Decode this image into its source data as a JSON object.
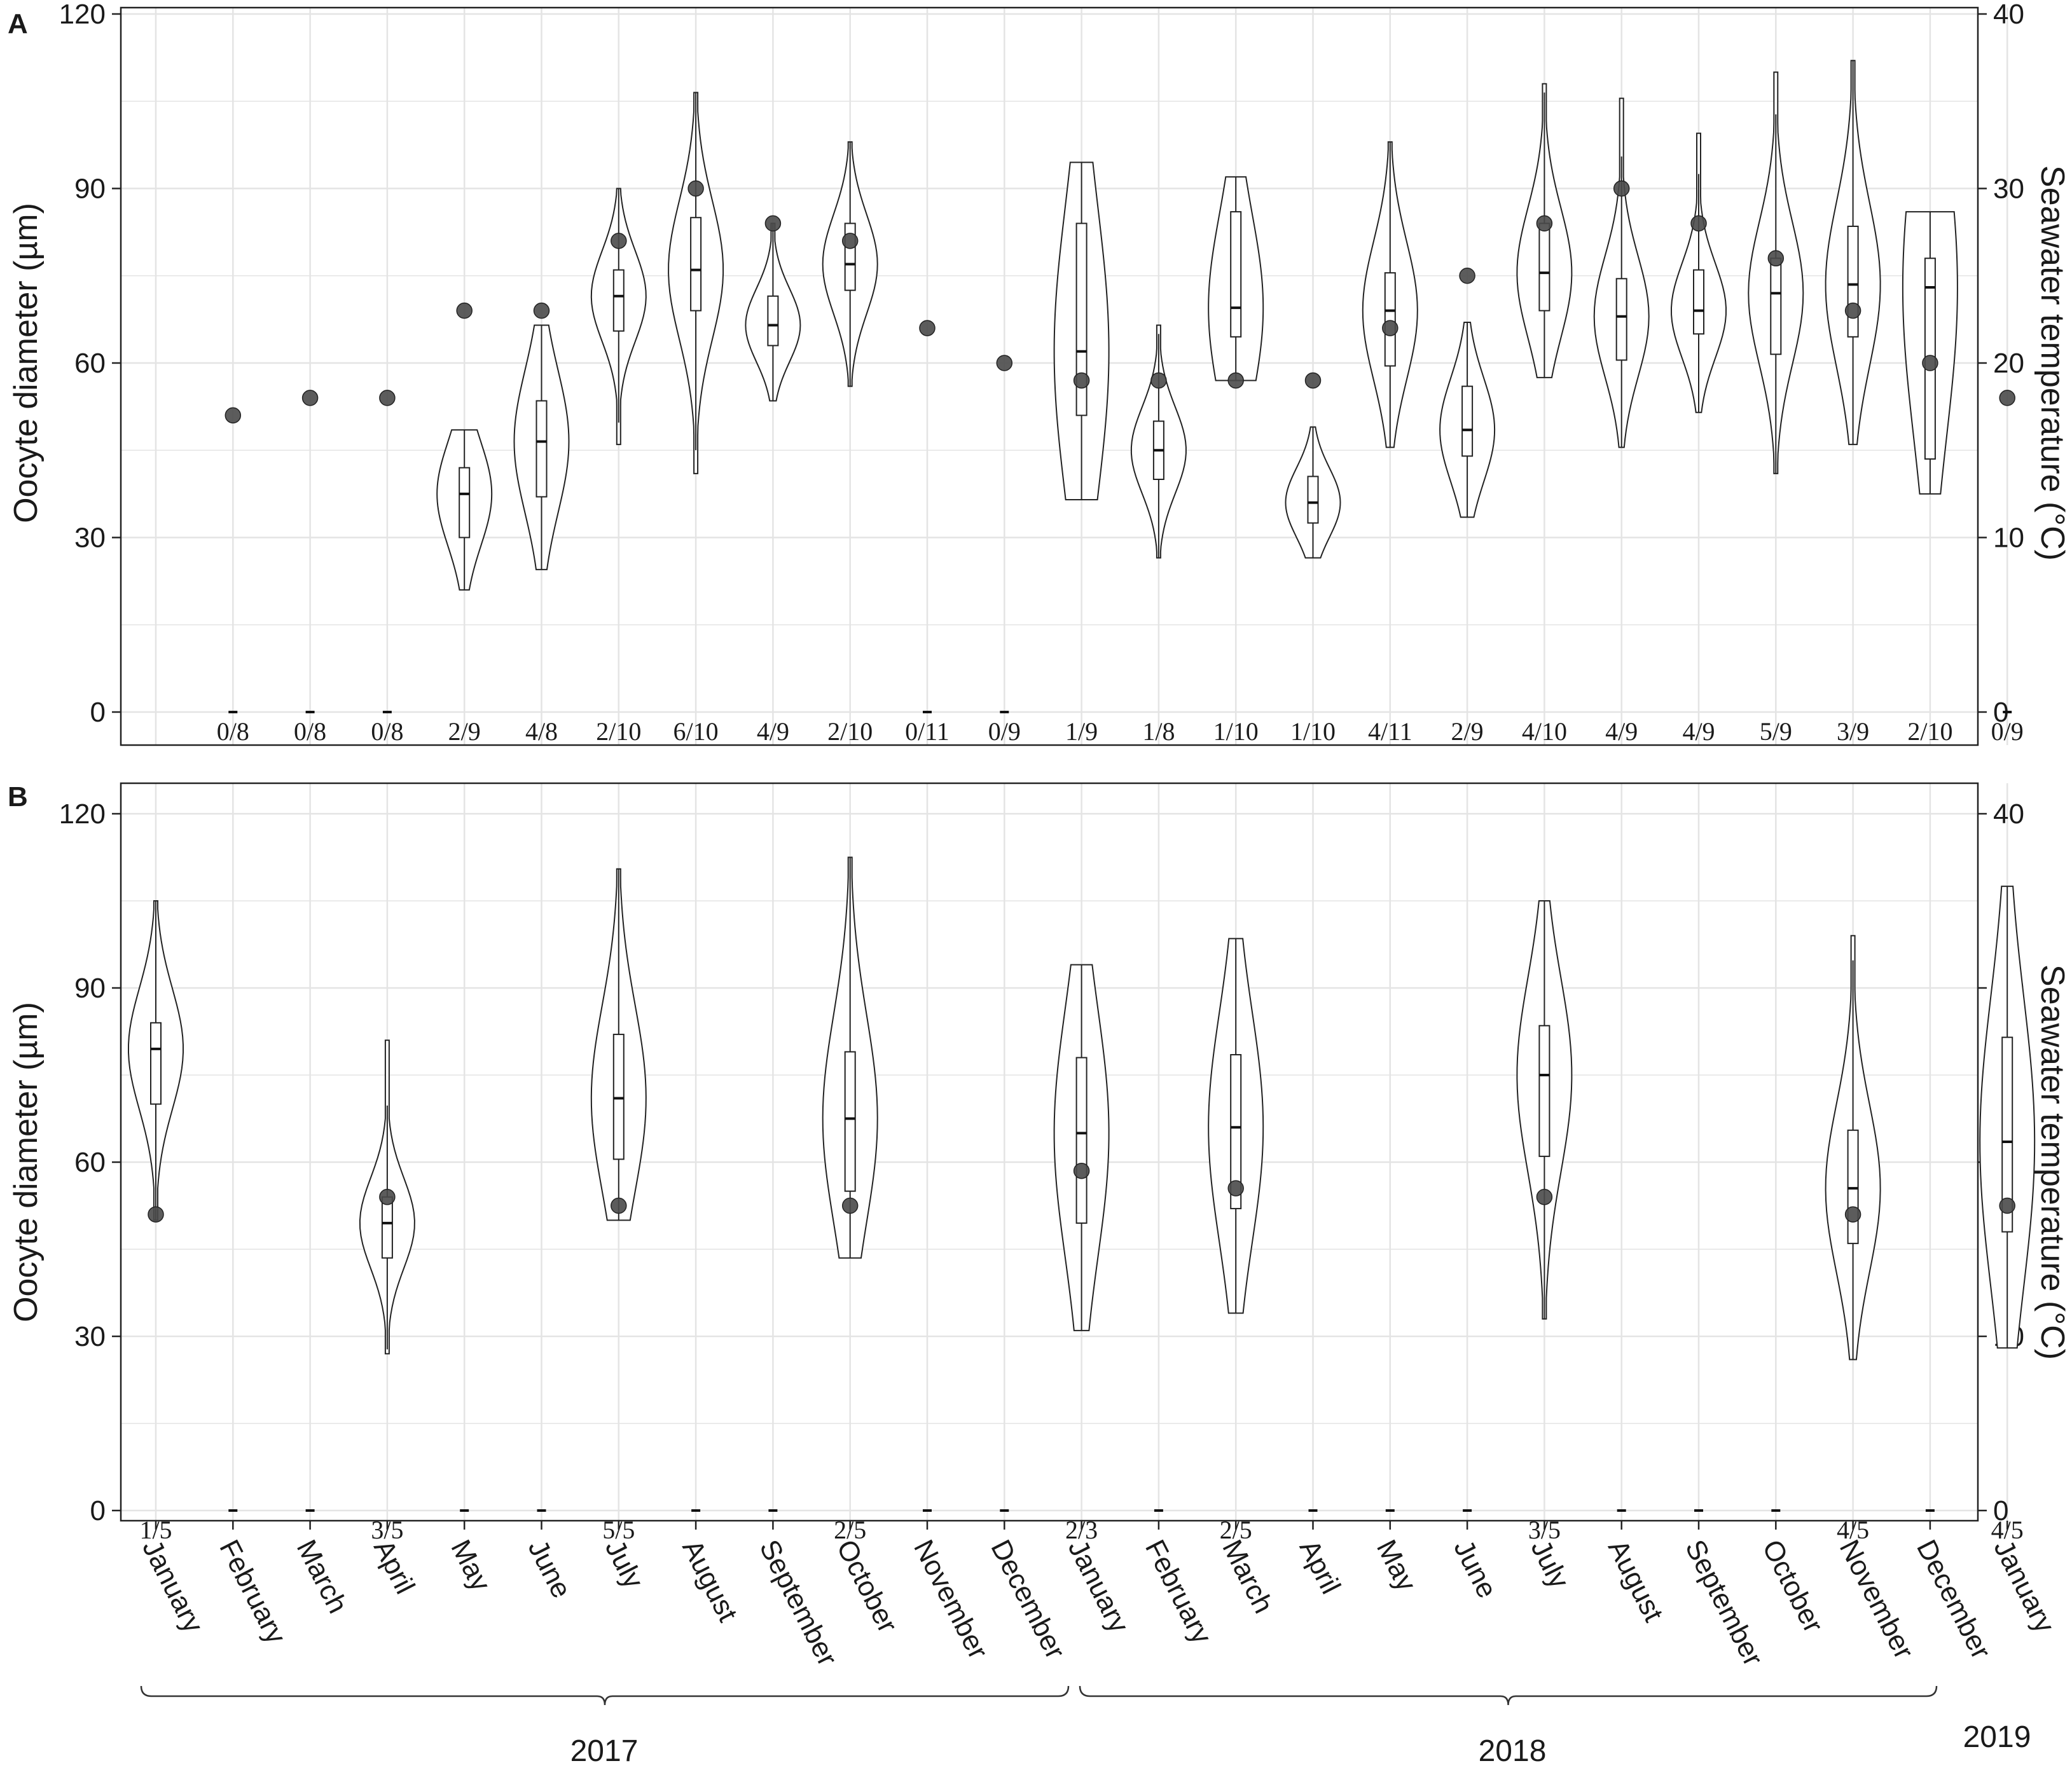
{
  "chart_data": [
    {
      "type": "violin",
      "panel_label": "A",
      "ylabel": "Oocyte diameter (µm)",
      "y2label": "Seawater temperature (°C)",
      "ylim": [
        0,
        120
      ],
      "y2lim": [
        0,
        40
      ],
      "yticks": [
        0,
        30,
        60,
        90,
        120
      ],
      "y2ticks": [
        0,
        10,
        20,
        30,
        40
      ],
      "grid": true,
      "categories": [
        "2017-01",
        "2017-02",
        "2017-03",
        "2017-04",
        "2017-05",
        "2017-06",
        "2017-07",
        "2017-08",
        "2017-09",
        "2017-10",
        "2017-11",
        "2017-12",
        "2018-01",
        "2018-02",
        "2018-03",
        "2018-04",
        "2018-05",
        "2018-06",
        "2018-07",
        "2018-08",
        "2018-09",
        "2018-10",
        "2018-11",
        "2018-12",
        "2019-01"
      ],
      "counts": [
        "",
        "0/8",
        "0/8",
        "0/8",
        "2/9",
        "4/8",
        "2/10",
        "6/10",
        "4/9",
        "2/10",
        "0/11",
        "0/9",
        "1/9",
        "1/8",
        "1/10",
        "1/10",
        "4/11",
        "2/9",
        "4/10",
        "4/9",
        "4/9",
        "5/9",
        "3/9",
        "2/10",
        "0/9"
      ],
      "temperature": [
        null,
        17,
        18,
        18,
        23,
        23,
        27,
        30,
        28,
        27,
        22,
        20,
        19,
        19,
        19,
        19,
        22,
        25,
        28,
        30,
        28,
        26,
        23,
        20,
        18
      ],
      "violins": [
        null,
        null,
        null,
        null,
        {
          "min": 21,
          "q1": 30,
          "median": 37.5,
          "q3": 42,
          "max": 48.5
        },
        {
          "min": 24.5,
          "q1": 37,
          "median": 46.5,
          "q3": 53.5,
          "max": 66.5
        },
        {
          "min": 46,
          "q1": 65.5,
          "median": 71.5,
          "q3": 76,
          "max": 90
        },
        {
          "min": 41,
          "q1": 69,
          "median": 76,
          "q3": 85,
          "max": 106.5
        },
        {
          "min": 53.5,
          "q1": 63,
          "median": 66.5,
          "q3": 71.5,
          "max": 84
        },
        {
          "min": 56,
          "q1": 72.5,
          "median": 77,
          "q3": 84,
          "max": 98
        },
        null,
        null,
        {
          "min": 36.5,
          "q1": 51,
          "median": 62,
          "q3": 84,
          "max": 94.5
        },
        {
          "min": 26.5,
          "q1": 40,
          "median": 45,
          "q3": 50,
          "max": 66.5
        },
        {
          "min": 57,
          "q1": 64.5,
          "median": 69.5,
          "q3": 86,
          "max": 92
        },
        {
          "min": 26.5,
          "q1": 32.5,
          "median": 36,
          "q3": 40.5,
          "max": 49
        },
        {
          "min": 45.5,
          "q1": 59.5,
          "median": 69,
          "q3": 75.5,
          "max": 98
        },
        {
          "min": 33.5,
          "q1": 44,
          "median": 48.5,
          "q3": 56,
          "max": 67
        },
        {
          "min": 57.5,
          "q1": 69,
          "median": 75.5,
          "q3": 84,
          "max": 108
        },
        {
          "min": 45.5,
          "q1": 60.5,
          "median": 68,
          "q3": 74.5,
          "max": 105.5
        },
        {
          "min": 51.5,
          "q1": 65,
          "median": 69,
          "q3": 76,
          "max": 99.5
        },
        {
          "min": 41,
          "q1": 61.5,
          "median": 72,
          "q3": 78,
          "max": 110
        },
        {
          "min": 46,
          "q1": 64.5,
          "median": 73.5,
          "q3": 83.5,
          "max": 112
        },
        {
          "min": 37.5,
          "q1": 43.5,
          "median": 73,
          "q3": 78,
          "max": 86
        },
        null
      ]
    },
    {
      "type": "violin",
      "panel_label": "B",
      "ylabel": "Oocyte diameter (µm)",
      "y2label": "Seawater temperature (°C)",
      "ylim": [
        0,
        120
      ],
      "y2lim": [
        0,
        40
      ],
      "yticks": [
        0,
        30,
        60,
        90,
        120
      ],
      "y2ticks": [
        0,
        10,
        20,
        30,
        40
      ],
      "grid": true,
      "categories": [
        "2017-01",
        "2017-02",
        "2017-03",
        "2017-04",
        "2017-05",
        "2017-06",
        "2017-07",
        "2017-08",
        "2017-09",
        "2017-10",
        "2017-11",
        "2017-12",
        "2018-01",
        "2018-02",
        "2018-03",
        "2018-04",
        "2018-05",
        "2018-06",
        "2018-07",
        "2018-08",
        "2018-09",
        "2018-10",
        "2018-11",
        "2018-12",
        "2019-01"
      ],
      "counts": [
        "1/5",
        "",
        "",
        "3/5",
        "",
        "",
        "5/5",
        "",
        "",
        "2/5",
        "",
        "",
        "2/3",
        "",
        "2/5",
        "",
        "",
        "",
        "3/5",
        "",
        "",
        "",
        "4/5",
        "",
        "4/5"
      ],
      "temperature": [
        17,
        null,
        null,
        18,
        null,
        null,
        17.5,
        null,
        null,
        17.5,
        null,
        null,
        19.5,
        null,
        18.5,
        null,
        null,
        null,
        18,
        null,
        null,
        null,
        17,
        null,
        17.5
      ],
      "violins": [
        {
          "min": 50,
          "q1": 70,
          "median": 79.5,
          "q3": 84,
          "max": 105
        },
        null,
        null,
        {
          "min": 27,
          "q1": 43.5,
          "median": 49.5,
          "q3": 54,
          "max": 81
        },
        null,
        null,
        {
          "min": 50,
          "q1": 60.5,
          "median": 71,
          "q3": 82,
          "max": 110.5
        },
        null,
        null,
        {
          "min": 43.5,
          "q1": 55,
          "median": 67.5,
          "q3": 79,
          "max": 112.5
        },
        null,
        null,
        {
          "min": 31,
          "q1": 49.5,
          "median": 65,
          "q3": 78,
          "max": 94
        },
        null,
        {
          "min": 34,
          "q1": 52,
          "median": 66,
          "q3": 78.5,
          "max": 98.5
        },
        null,
        null,
        null,
        {
          "min": 33,
          "q1": 61,
          "median": 75,
          "q3": 83.5,
          "max": 105
        },
        null,
        null,
        null,
        {
          "min": 26,
          "q1": 46,
          "median": 55.5,
          "q3": 65.5,
          "max": 99
        },
        null,
        {
          "min": 28,
          "q1": 48,
          "median": 63.5,
          "q3": 81.5,
          "max": 107.5
        }
      ]
    }
  ],
  "x_axis": {
    "months": [
      "January",
      "February",
      "March",
      "April",
      "May",
      "June",
      "July",
      "August",
      "September",
      "October",
      "November",
      "December",
      "January",
      "February",
      "March",
      "April",
      "May",
      "June",
      "July",
      "August",
      "September",
      "October",
      "November",
      "December",
      "January"
    ],
    "years": [
      "2017",
      "2018",
      "2019"
    ]
  },
  "colors": {
    "temperature_point": "#4a4a4a",
    "grid": "#e4e4e4",
    "violin_outline": "#222222"
  }
}
